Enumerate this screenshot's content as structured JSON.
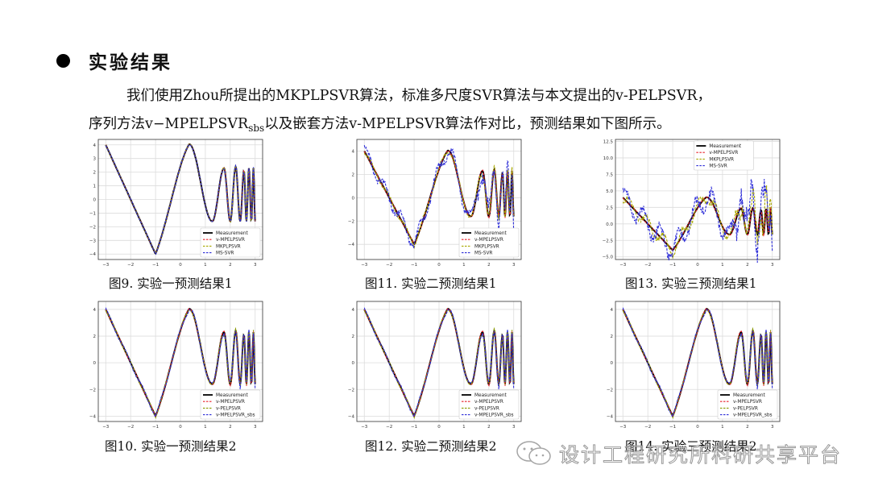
{
  "slide": {
    "heading": "实验结果",
    "paragraph_line1": "我们使用Zhou所提出的MKPLPSVR算法，标准多尺度SVR算法与本文提出的v-PELPSVR，",
    "paragraph_line2_pre": "序列方法v−MPELPSVR",
    "paragraph_line2_sub": "sbs",
    "paragraph_line2_post": "以及嵌套方法v-MPELPSVR算法作对比，预测结果如下图所示。",
    "watermark": "设计工程研究所科研共享平台"
  },
  "colors": {
    "measurement": "#000000",
    "v_MPELPSVR": "#e8212a",
    "MKPLPSVR": "#a8a800",
    "MS_SVR": "#2f2fd8",
    "v_PELPSVR": "#8a9a00",
    "v_MPELPSVR_sbs": "#2f2fd8",
    "grid": "#dcdcdc",
    "axes": "#333333"
  },
  "chart_data": [
    {
      "id": "fig9",
      "caption": "图9. 实验一预测结果1",
      "type": "line",
      "xlim": [
        -3.3,
        3.3
      ],
      "ylim": [
        -4.4,
        4.4
      ],
      "xticks": [
        -3,
        -2,
        -1,
        0,
        1,
        2,
        3
      ],
      "yticks": [
        -4,
        -3,
        -2,
        -1,
        0,
        1,
        2,
        3,
        4
      ],
      "grid": true,
      "legend_position": "lower right",
      "series": [
        {
          "name": "Measurement",
          "style": "solid",
          "noise": 0
        },
        {
          "name": "v-MPELPSVR",
          "style": "dashed",
          "noise": 0.05
        },
        {
          "name": "MKPLPSVR",
          "style": "dashed",
          "noise": 0.08
        },
        {
          "name": "MS-SVR",
          "style": "dashed",
          "noise": 0.1
        }
      ]
    },
    {
      "id": "fig11",
      "caption": "图11. 实验二预测结果1",
      "type": "line",
      "xlim": [
        -3.3,
        3.3
      ],
      "ylim": [
        -5.3,
        5.0
      ],
      "xticks": [
        -3,
        -2,
        -1,
        0,
        1,
        2,
        3
      ],
      "yticks": [
        -4,
        -2,
        0,
        2,
        4
      ],
      "grid": true,
      "legend_position": "lower right",
      "series": [
        {
          "name": "Measurement",
          "style": "solid",
          "noise": 0
        },
        {
          "name": "v-MPELPSVR",
          "style": "dashed",
          "noise": 0.15
        },
        {
          "name": "MKPLPSVR",
          "style": "dashed",
          "noise": 0.6
        },
        {
          "name": "MS-SVR",
          "style": "dashed",
          "noise": 1.6
        }
      ]
    },
    {
      "id": "fig13",
      "caption": "图13. 实验三预测结果1",
      "type": "line",
      "xlim": [
        -3.3,
        3.3
      ],
      "ylim": [
        -5.4,
        12.8
      ],
      "xticks": [
        -3,
        -2,
        -1,
        0,
        1,
        2,
        3
      ],
      "yticks": [
        -5.0,
        -2.5,
        0.0,
        2.5,
        5.0,
        7.5,
        10.0,
        12.5
      ],
      "grid": true,
      "legend_position": "upper center",
      "series": [
        {
          "name": "Measurement",
          "style": "solid",
          "noise": 0
        },
        {
          "name": "v-MPELPSVR",
          "style": "dashed",
          "noise": 0.3
        },
        {
          "name": "MKPLPSVR",
          "style": "dashed",
          "noise": 2.5
        },
        {
          "name": "MS-SVR",
          "style": "dashed",
          "noise": 4.5
        }
      ]
    },
    {
      "id": "fig10",
      "caption": "图10. 实验一预测结果2",
      "type": "line",
      "xlim": [
        -3.3,
        3.3
      ],
      "ylim": [
        -4.4,
        4.6
      ],
      "xticks": [
        -3,
        -2,
        -1,
        0,
        1,
        2,
        3
      ],
      "yticks": [
        -4,
        -2,
        0,
        2,
        4
      ],
      "grid": true,
      "legend_position": "lower right",
      "series": [
        {
          "name": "Measurement",
          "style": "solid",
          "noise": 0
        },
        {
          "name": "v-MPELPSVR",
          "style": "dashed",
          "noise": 0.15
        },
        {
          "name": "v-PELPSVR",
          "style": "dashed",
          "noise": 0.3
        },
        {
          "name": "v-MPELPSVR_sbs",
          "style": "dashed",
          "noise": 0.4
        }
      ]
    },
    {
      "id": "fig12",
      "caption": "图12. 实验二预测结果2",
      "type": "line",
      "xlim": [
        -3.3,
        3.3
      ],
      "ylim": [
        -4.4,
        4.6
      ],
      "xticks": [
        -3,
        -2,
        -1,
        0,
        1,
        2,
        3
      ],
      "yticks": [
        -4,
        -2,
        0,
        2,
        4
      ],
      "grid": true,
      "legend_position": "lower right",
      "series": [
        {
          "name": "Measurement",
          "style": "solid",
          "noise": 0
        },
        {
          "name": "v-MPELPSVR",
          "style": "dashed",
          "noise": 0.15
        },
        {
          "name": "v-PELPSVR",
          "style": "dashed",
          "noise": 0.3
        },
        {
          "name": "v-MPELPSVR_sbs",
          "style": "dashed",
          "noise": 0.4
        }
      ]
    },
    {
      "id": "fig14",
      "caption": "图14. 实验三预测结果2",
      "type": "line",
      "xlim": [
        -3.3,
        3.3
      ],
      "ylim": [
        -4.4,
        4.6
      ],
      "xticks": [
        -3,
        -2,
        -1,
        0,
        1,
        2,
        3
      ],
      "yticks": [
        -4,
        -2,
        0,
        2,
        4
      ],
      "grid": true,
      "legend_position": "lower right",
      "series": [
        {
          "name": "Measurement",
          "style": "solid",
          "noise": 0
        },
        {
          "name": "v-MPELPSVR",
          "style": "dashed",
          "noise": 0.15
        },
        {
          "name": "v-PELPSVR",
          "style": "dashed",
          "noise": 0.3
        },
        {
          "name": "v-MPELPSVR_sbs",
          "style": "dashed",
          "noise": 0.4
        }
      ]
    }
  ],
  "measurement_function": {
    "description": "piecewise: linear from (-3,4) to (-1,-4); rising to peak ~4 at x≈0.35; then oscillating chirp with amplitude ~2.3 and increasing frequency to x=3",
    "key_points": [
      [
        -3,
        4
      ],
      [
        -1,
        -4
      ],
      [
        0.35,
        4.05
      ],
      [
        1.28,
        -1.6
      ],
      [
        1.75,
        2.3
      ],
      [
        2.0,
        -1.6
      ],
      [
        2.22,
        2.4
      ],
      [
        2.4,
        -1.6
      ],
      [
        2.55,
        2.1
      ],
      [
        2.65,
        -1.6
      ],
      [
        2.75,
        2.3
      ],
      [
        2.85,
        -1.6
      ],
      [
        2.93,
        2.3
      ],
      [
        3.0,
        -1.6
      ]
    ]
  }
}
